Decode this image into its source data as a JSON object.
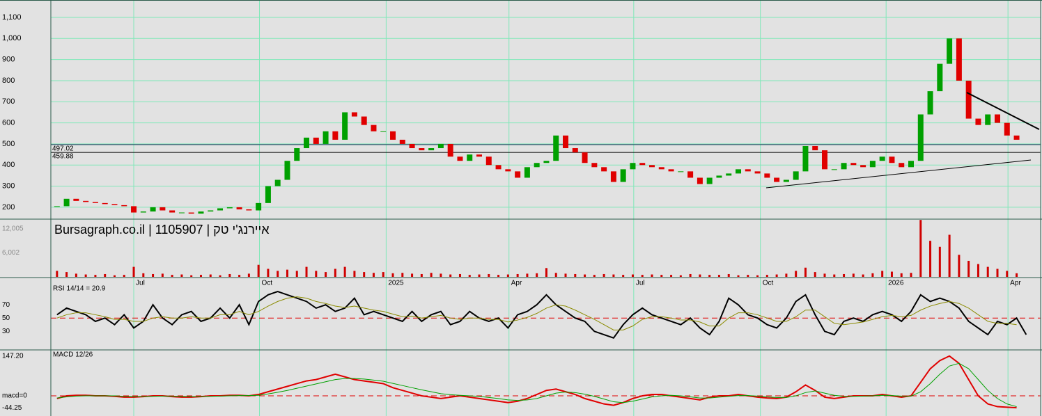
{
  "chart_data": [
    {
      "type": "candlestick",
      "title": "Bursagraph.co.il | 1105907 | איירנג'י טק",
      "xlim": [
        -0.64,
        102.5
      ],
      "xticks": [
        {
          "value": 8.0,
          "label": "Jul"
        },
        {
          "value": 21.1,
          "label": "Oct"
        },
        {
          "value": 34.3,
          "label": "2025"
        },
        {
          "value": 47.1,
          "label": "Apr"
        },
        {
          "value": 60.1,
          "label": "Jul"
        },
        {
          "value": 73.3,
          "label": "Oct"
        },
        {
          "value": 86.4,
          "label": "2026"
        },
        {
          "value": 99.1,
          "label": "Apr"
        }
      ],
      "ylim": [
        147,
        1179
      ],
      "yticks": [
        200,
        300,
        400,
        500,
        600,
        700,
        800,
        900,
        {
          "value": 1000,
          "label": "1,000"
        },
        {
          "value": 1100,
          "label": "1,100"
        }
      ],
      "grid": true,
      "up_color": "#00a000",
      "down_color": "#e00000",
      "hlines": [
        497.02,
        459.88
      ],
      "values": [
        205,
        240,
        230,
        225,
        220,
        215,
        210,
        205,
        175,
        180,
        200,
        185,
        175,
        175,
        170,
        180,
        185,
        195,
        200,
        190,
        185,
        220,
        300,
        330,
        420,
        480,
        530,
        500,
        560,
        520,
        650,
        630,
        590,
        560,
        560,
        520,
        500,
        480,
        470,
        480,
        500,
        440,
        420,
        450,
        440,
        400,
        380,
        370,
        340,
        390,
        410,
        420,
        540,
        480,
        460,
        410,
        390,
        370,
        320,
        380,
        410,
        400,
        390,
        380,
        370,
        370,
        340,
        310,
        340,
        350,
        360,
        380,
        370,
        360,
        340,
        320,
        330,
        370,
        490,
        470,
        380,
        380,
        410,
        400,
        390,
        420,
        440,
        410,
        390,
        420,
        640,
        750,
        880,
        1000,
        800,
        620,
        590,
        640,
        600,
        540,
        520
      ]
    },
    {
      "type": "bar",
      "color": "#d00000",
      "ylim": [
        0,
        14230
      ],
      "yticks": [
        {
          "value": 6002,
          "label": "6,002"
        },
        {
          "value": 12005,
          "label": "12,005"
        }
      ],
      "values": [
        1500,
        1200,
        800,
        600,
        500,
        700,
        400,
        500,
        2500,
        900,
        700,
        800,
        500,
        600,
        400,
        500,
        600,
        400,
        700,
        500,
        800,
        3000,
        2000,
        1500,
        1800,
        1500,
        2500,
        1500,
        1200,
        2000,
        2500,
        1500,
        1200,
        1000,
        1200,
        900,
        1000,
        800,
        700,
        1000,
        800,
        600,
        700,
        500,
        600,
        700,
        500,
        600,
        700,
        800,
        900,
        2200,
        1000,
        800,
        700,
        600,
        500,
        700,
        600,
        500,
        600,
        500,
        600,
        500,
        500,
        400,
        700,
        600,
        500,
        500,
        700,
        400,
        500,
        400,
        500,
        600,
        800,
        1500,
        2300,
        1200,
        800,
        600,
        700,
        800,
        600,
        900,
        1500,
        1300,
        900,
        1000,
        14200,
        9000,
        7500,
        10500,
        5500,
        4000,
        3200,
        2500,
        2000,
        1500,
        900
      ]
    },
    {
      "type": "line",
      "title": "RSI 14/14 = 20.9",
      "ylim": [
        3,
        110
      ],
      "yticks": [
        30,
        50,
        70
      ],
      "refline": 50,
      "series": [
        {
          "color": "#000000",
          "values": [
            55,
            65,
            60,
            55,
            45,
            50,
            40,
            55,
            35,
            45,
            70,
            50,
            40,
            55,
            60,
            45,
            50,
            65,
            50,
            70,
            40,
            75,
            85,
            90,
            85,
            80,
            75,
            65,
            70,
            60,
            65,
            80,
            55,
            60,
            55,
            50,
            45,
            60,
            45,
            55,
            60,
            40,
            45,
            60,
            50,
            45,
            50,
            35,
            55,
            60,
            70,
            85,
            70,
            60,
            50,
            45,
            30,
            25,
            20,
            40,
            55,
            65,
            55,
            50,
            45,
            40,
            50,
            35,
            25,
            45,
            80,
            70,
            55,
            50,
            40,
            35,
            50,
            75,
            85,
            55,
            30,
            25,
            45,
            50,
            45,
            55,
            60,
            55,
            45,
            60,
            85,
            75,
            80,
            75,
            65,
            45,
            35,
            25,
            45,
            40,
            50,
            25
          ]
        },
        {
          "color": "#8b8b00",
          "values": [
            50,
            55,
            58,
            58,
            55,
            52,
            48,
            48,
            45,
            45,
            50,
            52,
            50,
            50,
            52,
            50,
            50,
            55,
            55,
            60,
            55,
            60,
            68,
            75,
            80,
            82,
            80,
            75,
            72,
            68,
            66,
            68,
            65,
            62,
            60,
            56,
            52,
            53,
            50,
            52,
            54,
            50,
            48,
            50,
            50,
            48,
            48,
            44,
            47,
            51,
            57,
            65,
            70,
            68,
            62,
            55,
            48,
            40,
            32,
            32,
            38,
            48,
            52,
            52,
            50,
            47,
            47,
            44,
            38,
            38,
            50,
            58,
            58,
            55,
            50,
            45,
            45,
            52,
            62,
            62,
            52,
            42,
            40,
            42,
            44,
            48,
            52,
            54,
            52,
            54,
            62,
            68,
            72,
            75,
            72,
            65,
            55,
            45,
            42,
            42,
            40
          ]
        }
      ]
    },
    {
      "type": "line",
      "title": "MACD 12/26",
      "ylim": [
        -72,
        167
      ],
      "yticks": [
        {
          "value": 147.2,
          "label": "147.20"
        },
        {
          "value": 0,
          "label": "macd=0"
        },
        {
          "value": -44.25,
          "label": "-44.25"
        }
      ],
      "refline": 0,
      "series": [
        {
          "color": "#e00000",
          "values": [
            -10,
            0,
            2,
            2,
            0,
            0,
            -2,
            -5,
            -5,
            -3,
            0,
            0,
            -3,
            -5,
            -5,
            -3,
            0,
            0,
            2,
            2,
            0,
            5,
            15,
            25,
            35,
            45,
            55,
            60,
            70,
            80,
            70,
            60,
            55,
            50,
            45,
            30,
            20,
            10,
            0,
            -5,
            -10,
            -5,
            0,
            -5,
            -10,
            -15,
            -20,
            -25,
            -20,
            -10,
            5,
            20,
            25,
            15,
            5,
            -10,
            -20,
            -30,
            -35,
            -25,
            -10,
            0,
            5,
            5,
            0,
            -5,
            -10,
            -15,
            -5,
            0,
            0,
            5,
            0,
            -5,
            -8,
            -10,
            -5,
            15,
            40,
            20,
            -5,
            -10,
            -5,
            0,
            0,
            0,
            5,
            0,
            -5,
            0,
            50,
            100,
            130,
            147,
            120,
            60,
            0,
            -30,
            -40,
            -42,
            -44
          ]
        },
        {
          "color": "#00a000",
          "values": [
            -8,
            -4,
            -1,
            0,
            0,
            0,
            0,
            -2,
            -3,
            -3,
            -2,
            -1,
            -1,
            -2,
            -3,
            -3,
            -2,
            -1,
            0,
            1,
            1,
            2,
            7,
            13,
            20,
            28,
            36,
            44,
            52,
            60,
            64,
            64,
            62,
            58,
            54,
            46,
            38,
            30,
            22,
            15,
            8,
            4,
            2,
            0,
            -2,
            -6,
            -10,
            -15,
            -17,
            -15,
            -10,
            0,
            10,
            14,
            12,
            6,
            -2,
            -12,
            -22,
            -25,
            -20,
            -12,
            -4,
            0,
            2,
            0,
            -4,
            -8,
            -8,
            -5,
            -2,
            1,
            1,
            -1,
            -4,
            -6,
            -6,
            0,
            12,
            18,
            10,
            2,
            -2,
            -2,
            -1,
            0,
            2,
            1,
            -1,
            -1,
            15,
            45,
            80,
            110,
            120,
            100,
            60,
            20,
            -10,
            -30,
            -40
          ]
        }
      ]
    }
  ]
}
